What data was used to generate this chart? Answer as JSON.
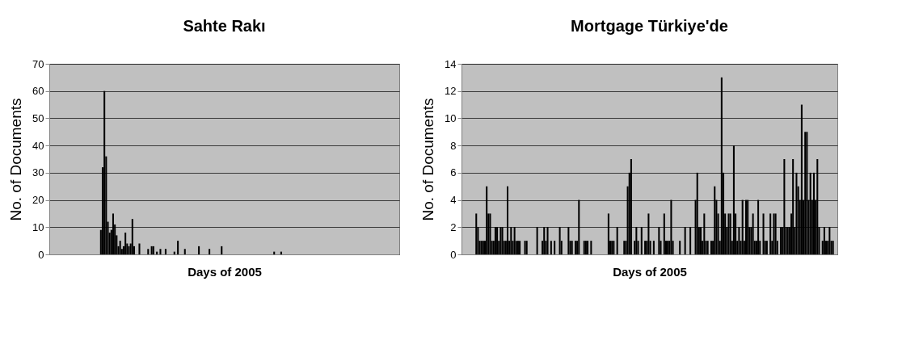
{
  "chart_data": [
    {
      "type": "bar",
      "title": "Sahte Rakı",
      "xlabel": "Days of 2005",
      "ylabel": "No. of Documents",
      "categories": [
        null,
        null,
        null,
        null,
        null,
        null,
        null,
        null,
        null,
        null,
        null,
        null,
        null,
        null,
        null,
        null,
        null,
        null,
        null,
        null,
        null,
        null,
        null,
        null,
        null,
        null,
        null,
        null,
        null,
        null,
        null,
        null,
        null,
        null,
        null,
        null,
        null,
        null,
        null,
        null,
        null,
        null,
        null,
        null,
        null,
        null,
        null,
        null,
        null,
        null,
        null,
        null,
        null,
        null,
        null,
        null,
        null,
        null,
        null,
        null,
        null,
        null,
        null,
        null,
        null,
        null,
        null,
        null,
        null,
        null,
        null,
        null,
        null,
        null,
        null,
        null,
        null,
        null,
        null,
        null,
        null,
        null,
        null,
        null,
        null,
        null,
        null,
        null,
        null,
        null,
        null,
        null,
        null,
        null,
        null,
        null,
        null,
        null,
        null,
        null,
        null,
        null,
        null,
        null,
        null,
        null,
        null,
        null,
        null,
        null,
        null,
        null,
        null,
        null,
        null,
        null,
        null,
        null,
        null,
        null,
        null,
        null,
        null,
        null,
        null,
        null,
        null,
        null,
        null,
        null,
        null,
        null,
        null,
        null,
        null,
        null,
        null,
        null,
        null,
        null,
        null,
        null,
        null,
        null,
        null,
        null,
        null,
        null,
        null,
        null,
        null,
        null,
        null,
        null,
        null,
        null,
        null,
        null,
        null,
        null,
        null,
        null,
        null,
        null,
        null,
        null,
        null,
        null,
        null,
        null,
        null,
        null,
        null,
        null,
        null,
        null,
        null,
        null,
        null,
        null,
        null,
        null,
        null,
        null,
        null,
        null,
        null,
        null,
        null,
        null,
        null,
        null,
        null,
        null,
        null,
        null,
        null,
        null,
        null,
        null
      ],
      "values": [
        null,
        null,
        null,
        null,
        null,
        null,
        null,
        null,
        null,
        null,
        null,
        null,
        null,
        null,
        null,
        null,
        null,
        null,
        null,
        null,
        null,
        null,
        null,
        null,
        null,
        null,
        null,
        null,
        null,
        9,
        32,
        60,
        36,
        12,
        8,
        9,
        15,
        11,
        7,
        3,
        5,
        2,
        3,
        8,
        4,
        3,
        4,
        13,
        3,
        null,
        null,
        4,
        null,
        null,
        null,
        null,
        2,
        null,
        3,
        3,
        null,
        1,
        null,
        2,
        null,
        null,
        2,
        null,
        null,
        null,
        null,
        1,
        null,
        5,
        null,
        null,
        null,
        2,
        null,
        null,
        null,
        null,
        null,
        null,
        null,
        3,
        null,
        null,
        null,
        null,
        null,
        2,
        null,
        null,
        null,
        null,
        null,
        null,
        3,
        null,
        null,
        null,
        null,
        null,
        null,
        null,
        null,
        null,
        null,
        null,
        null,
        null,
        null,
        null,
        null,
        null,
        null,
        null,
        null,
        null,
        null,
        null,
        null,
        null,
        null,
        null,
        null,
        null,
        1,
        null,
        null,
        null,
        1,
        null,
        null,
        null,
        null,
        null,
        null,
        null,
        null,
        null,
        null,
        null,
        null,
        null,
        null,
        null,
        null,
        null,
        null,
        null,
        null,
        null,
        null,
        null,
        null,
        null,
        null,
        null,
        null,
        null,
        null,
        null,
        null,
        null,
        null,
        null,
        null,
        null,
        null,
        null,
        null,
        null,
        null,
        null,
        null,
        null,
        null,
        null,
        null,
        null,
        null,
        null,
        null,
        null,
        null,
        null,
        null,
        null,
        null,
        null,
        null,
        null,
        null,
        null,
        null,
        null,
        null,
        null
      ],
      "color": "#000000",
      "ylim": [
        0,
        70
      ],
      "yticks": [
        0,
        10,
        20,
        30,
        40,
        50,
        60,
        70
      ],
      "grid": "y",
      "tick_labels": "y"
    },
    {
      "type": "bar",
      "title": "Mortgage Türkiye'de",
      "xlabel": "Days of 2005",
      "ylabel": "No. of Documents",
      "categories": [
        null,
        null,
        null,
        null,
        null,
        null,
        null,
        null,
        null,
        null,
        null,
        null,
        null,
        null,
        null,
        null,
        null,
        null,
        null,
        null,
        null,
        null,
        null,
        null,
        null,
        null,
        null,
        null,
        null,
        null,
        null,
        null,
        null,
        null,
        null,
        null,
        null,
        null,
        null,
        null,
        null,
        null,
        null,
        null,
        null,
        null,
        null,
        null,
        null,
        null,
        null,
        null,
        null,
        null,
        null,
        null,
        null,
        null,
        null,
        null,
        null,
        null,
        null,
        null,
        null,
        null,
        null,
        null,
        null,
        null,
        null,
        null,
        null,
        null,
        null,
        null,
        null,
        null,
        null,
        null,
        null,
        null,
        null,
        null,
        null,
        null,
        null,
        null,
        null,
        null,
        null,
        null,
        null,
        null,
        null,
        null,
        null,
        null,
        null,
        null,
        null,
        null,
        null,
        null,
        null,
        null,
        null,
        null,
        null,
        null,
        null,
        null,
        null,
        null,
        null,
        null,
        null,
        null,
        null,
        null,
        null,
        null,
        null,
        null,
        null,
        null,
        null,
        null,
        null,
        null,
        null,
        null,
        null,
        null,
        null,
        null,
        null,
        null,
        null,
        null,
        null,
        null,
        null,
        null,
        null,
        null,
        null,
        null,
        null,
        null,
        null,
        null,
        null,
        null,
        null,
        null,
        null,
        null,
        null,
        null,
        null,
        null,
        null,
        null,
        null,
        null,
        null,
        null,
        null,
        null,
        null,
        null,
        null,
        null,
        null,
        null,
        null,
        null,
        null,
        null,
        null,
        null,
        null,
        null,
        null,
        null,
        null,
        null,
        null,
        null,
        null,
        null,
        null,
        null,
        null,
        null,
        null,
        null,
        null,
        null,
        null,
        null,
        null,
        null,
        null,
        null,
        null,
        null,
        null,
        null,
        null,
        null,
        null,
        null,
        null,
        null
      ],
      "values": [
        null,
        null,
        null,
        null,
        null,
        null,
        null,
        null,
        3,
        2,
        1,
        1,
        1,
        1,
        5,
        3,
        3,
        1,
        1,
        2,
        2,
        1,
        2,
        2,
        1,
        1,
        5,
        1,
        2,
        1,
        2,
        1,
        1,
        1,
        null,
        null,
        1,
        1,
        null,
        null,
        null,
        null,
        null,
        2,
        null,
        null,
        1,
        2,
        1,
        2,
        null,
        1,
        null,
        1,
        null,
        null,
        2,
        1,
        null,
        null,
        null,
        2,
        1,
        1,
        null,
        1,
        1,
        4,
        null,
        null,
        1,
        1,
        1,
        null,
        1,
        null,
        null,
        null,
        null,
        null,
        null,
        null,
        null,
        null,
        3,
        1,
        1,
        1,
        null,
        2,
        null,
        null,
        null,
        1,
        1,
        5,
        6,
        7,
        null,
        1,
        2,
        1,
        null,
        2,
        null,
        1,
        1,
        3,
        1,
        null,
        1,
        null,
        null,
        2,
        1,
        null,
        3,
        1,
        1,
        1,
        4,
        1,
        null,
        null,
        null,
        1,
        null,
        null,
        2,
        null,
        null,
        2,
        null,
        null,
        4,
        6,
        2,
        2,
        1,
        3,
        1,
        1,
        null,
        1,
        1,
        5,
        4,
        3,
        1,
        13,
        6,
        3,
        2,
        3,
        3,
        1,
        8,
        3,
        1,
        2,
        1,
        4,
        1,
        4,
        4,
        2,
        2,
        3,
        1,
        1,
        4,
        1,
        null,
        3,
        1,
        1,
        null,
        3,
        1,
        3,
        3,
        1,
        null,
        2,
        2,
        7,
        2,
        2,
        2,
        3,
        7,
        2,
        6,
        5,
        4,
        11,
        4,
        9,
        9,
        4,
        6,
        4,
        6,
        4,
        7,
        2,
        null,
        1,
        2,
        1,
        1,
        2,
        1,
        1,
        null,
        null
      ],
      "color": "#000000",
      "ylim": [
        0,
        14
      ],
      "yticks": [
        0,
        2,
        4,
        6,
        8,
        10,
        12,
        14
      ],
      "grid": "y",
      "tick_labels": "y"
    }
  ]
}
